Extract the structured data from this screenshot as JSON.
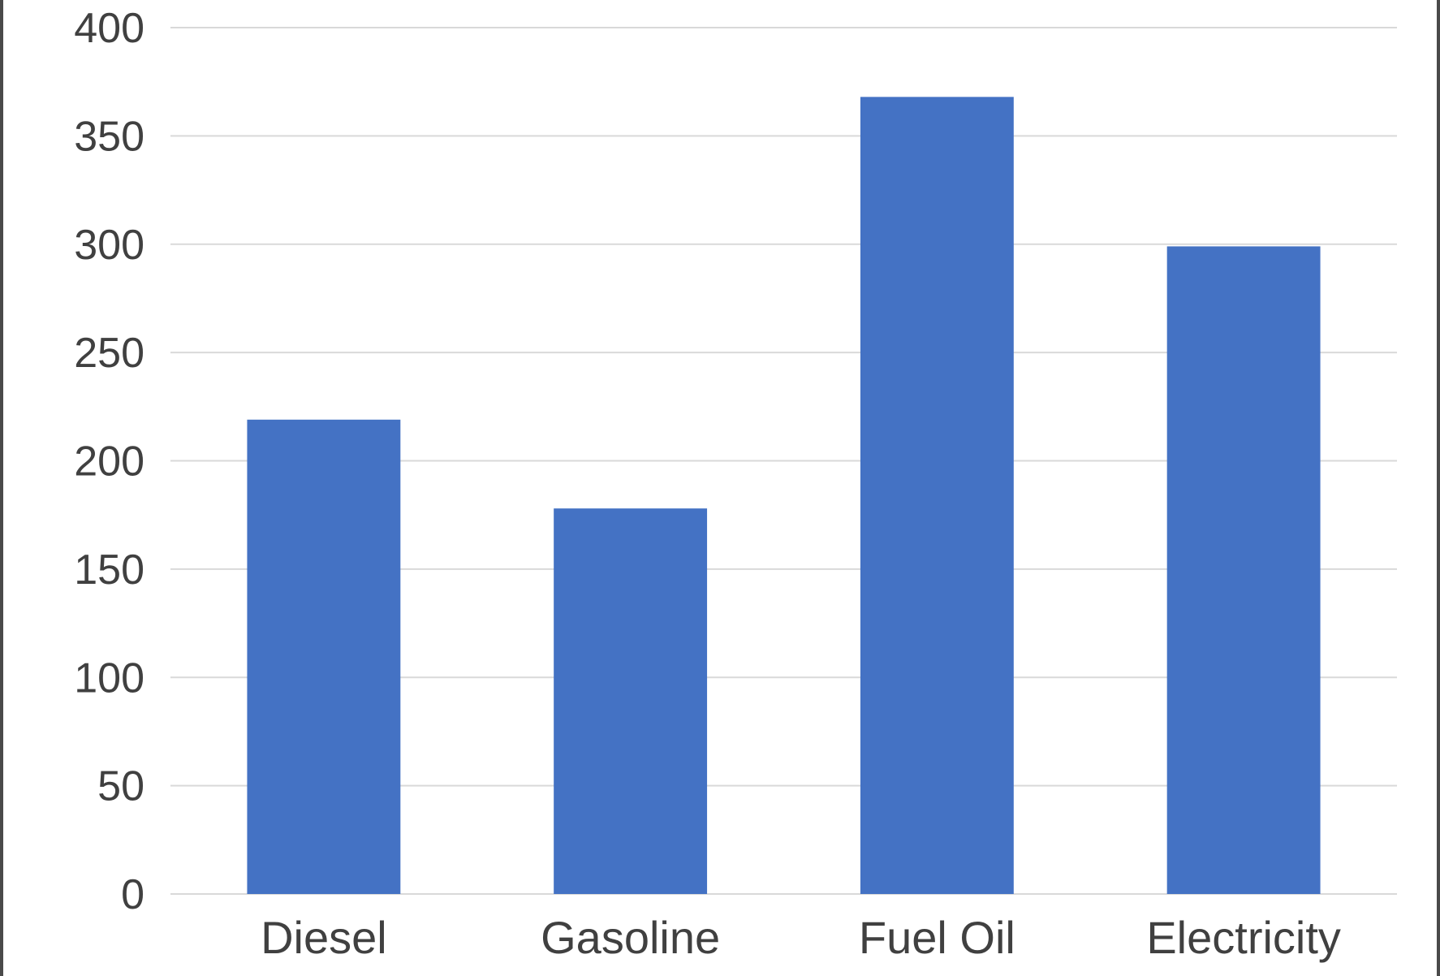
{
  "chart_data": {
    "type": "bar",
    "categories": [
      "Diesel",
      "Gasoline",
      "Fuel Oil",
      "Electricity"
    ],
    "values": [
      219,
      178,
      368,
      299
    ],
    "title": "",
    "xlabel": "",
    "ylabel": "",
    "ylim": [
      0,
      400
    ],
    "yticks": [
      0,
      50,
      100,
      150,
      200,
      250,
      300,
      350,
      400
    ],
    "grid": true,
    "legend": "none",
    "bar_color": "#4472C4",
    "grid_color": "#d9d9d9"
  }
}
